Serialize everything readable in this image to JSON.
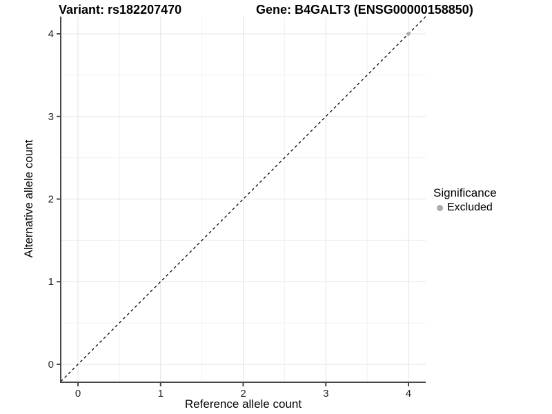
{
  "chart_data": {
    "type": "scatter",
    "title_left": "Variant: rs182207470",
    "title_right": "Gene: B4GALT3 (ENSG00000158850)",
    "xlabel": "Reference allele count",
    "ylabel": "Alternative allele count",
    "xlim": [
      -0.209,
      4.209
    ],
    "ylim": [
      -0.209,
      4.209
    ],
    "xticks": [
      0,
      1,
      2,
      3,
      4
    ],
    "yticks": [
      0,
      1,
      2,
      3,
      4
    ],
    "grid": "major and minor gridlines, light gray on white",
    "reference_line": {
      "type": "identity y=x",
      "style": "dashed",
      "color": "#000000"
    },
    "series": [
      {
        "name": "Excluded",
        "color": "#aaaaaa",
        "points": [
          [
            4,
            4
          ]
        ]
      }
    ],
    "legend": {
      "title": "Significance",
      "position": "right",
      "entries": [
        {
          "label": "Excluded",
          "color": "#aaaaaa",
          "marker": "circle"
        }
      ]
    }
  },
  "colors": {
    "background": "#ffffff",
    "grid_major": "#e3e3e3",
    "grid_minor": "#f0f0f0",
    "axis_line": "#474747",
    "tick_text": "#262626",
    "title_text": "#000000",
    "point": "#aaaaaa"
  }
}
